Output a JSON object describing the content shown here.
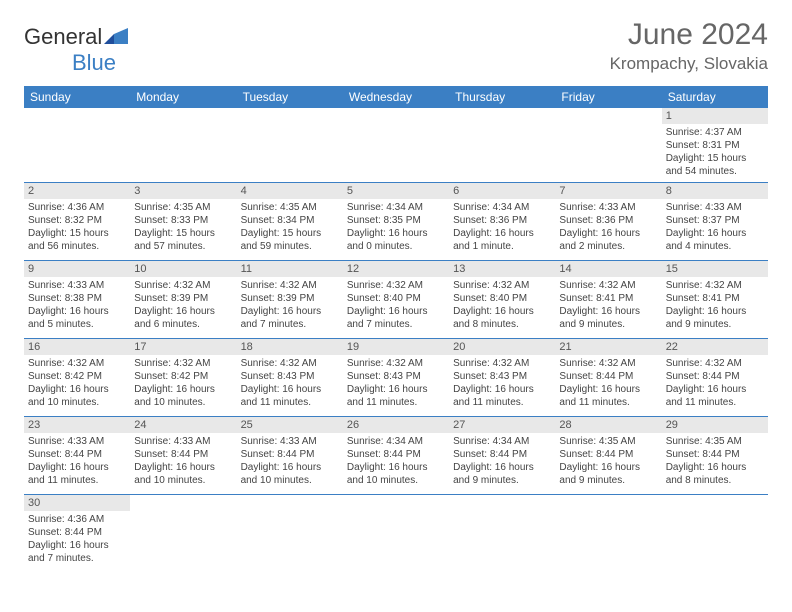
{
  "logo": {
    "word1": "General",
    "word2": "Blue"
  },
  "title": "June 2024",
  "location": "Krompachy, Slovakia",
  "colors": {
    "header_bg": "#3b7fc4",
    "header_text": "#ffffff",
    "daynum_bg": "#e8e8e8",
    "row_border": "#3b7fc4",
    "title_color": "#666666",
    "body_text": "#444444"
  },
  "weekdays": [
    "Sunday",
    "Monday",
    "Tuesday",
    "Wednesday",
    "Thursday",
    "Friday",
    "Saturday"
  ],
  "weeks": [
    [
      null,
      null,
      null,
      null,
      null,
      null,
      {
        "n": "1",
        "sr": "Sunrise: 4:37 AM",
        "ss": "Sunset: 8:31 PM",
        "dl": "Daylight: 15 hours and 54 minutes."
      }
    ],
    [
      {
        "n": "2",
        "sr": "Sunrise: 4:36 AM",
        "ss": "Sunset: 8:32 PM",
        "dl": "Daylight: 15 hours and 56 minutes."
      },
      {
        "n": "3",
        "sr": "Sunrise: 4:35 AM",
        "ss": "Sunset: 8:33 PM",
        "dl": "Daylight: 15 hours and 57 minutes."
      },
      {
        "n": "4",
        "sr": "Sunrise: 4:35 AM",
        "ss": "Sunset: 8:34 PM",
        "dl": "Daylight: 15 hours and 59 minutes."
      },
      {
        "n": "5",
        "sr": "Sunrise: 4:34 AM",
        "ss": "Sunset: 8:35 PM",
        "dl": "Daylight: 16 hours and 0 minutes."
      },
      {
        "n": "6",
        "sr": "Sunrise: 4:34 AM",
        "ss": "Sunset: 8:36 PM",
        "dl": "Daylight: 16 hours and 1 minute."
      },
      {
        "n": "7",
        "sr": "Sunrise: 4:33 AM",
        "ss": "Sunset: 8:36 PM",
        "dl": "Daylight: 16 hours and 2 minutes."
      },
      {
        "n": "8",
        "sr": "Sunrise: 4:33 AM",
        "ss": "Sunset: 8:37 PM",
        "dl": "Daylight: 16 hours and 4 minutes."
      }
    ],
    [
      {
        "n": "9",
        "sr": "Sunrise: 4:33 AM",
        "ss": "Sunset: 8:38 PM",
        "dl": "Daylight: 16 hours and 5 minutes."
      },
      {
        "n": "10",
        "sr": "Sunrise: 4:32 AM",
        "ss": "Sunset: 8:39 PM",
        "dl": "Daylight: 16 hours and 6 minutes."
      },
      {
        "n": "11",
        "sr": "Sunrise: 4:32 AM",
        "ss": "Sunset: 8:39 PM",
        "dl": "Daylight: 16 hours and 7 minutes."
      },
      {
        "n": "12",
        "sr": "Sunrise: 4:32 AM",
        "ss": "Sunset: 8:40 PM",
        "dl": "Daylight: 16 hours and 7 minutes."
      },
      {
        "n": "13",
        "sr": "Sunrise: 4:32 AM",
        "ss": "Sunset: 8:40 PM",
        "dl": "Daylight: 16 hours and 8 minutes."
      },
      {
        "n": "14",
        "sr": "Sunrise: 4:32 AM",
        "ss": "Sunset: 8:41 PM",
        "dl": "Daylight: 16 hours and 9 minutes."
      },
      {
        "n": "15",
        "sr": "Sunrise: 4:32 AM",
        "ss": "Sunset: 8:41 PM",
        "dl": "Daylight: 16 hours and 9 minutes."
      }
    ],
    [
      {
        "n": "16",
        "sr": "Sunrise: 4:32 AM",
        "ss": "Sunset: 8:42 PM",
        "dl": "Daylight: 16 hours and 10 minutes."
      },
      {
        "n": "17",
        "sr": "Sunrise: 4:32 AM",
        "ss": "Sunset: 8:42 PM",
        "dl": "Daylight: 16 hours and 10 minutes."
      },
      {
        "n": "18",
        "sr": "Sunrise: 4:32 AM",
        "ss": "Sunset: 8:43 PM",
        "dl": "Daylight: 16 hours and 11 minutes."
      },
      {
        "n": "19",
        "sr": "Sunrise: 4:32 AM",
        "ss": "Sunset: 8:43 PM",
        "dl": "Daylight: 16 hours and 11 minutes."
      },
      {
        "n": "20",
        "sr": "Sunrise: 4:32 AM",
        "ss": "Sunset: 8:43 PM",
        "dl": "Daylight: 16 hours and 11 minutes."
      },
      {
        "n": "21",
        "sr": "Sunrise: 4:32 AM",
        "ss": "Sunset: 8:44 PM",
        "dl": "Daylight: 16 hours and 11 minutes."
      },
      {
        "n": "22",
        "sr": "Sunrise: 4:32 AM",
        "ss": "Sunset: 8:44 PM",
        "dl": "Daylight: 16 hours and 11 minutes."
      }
    ],
    [
      {
        "n": "23",
        "sr": "Sunrise: 4:33 AM",
        "ss": "Sunset: 8:44 PM",
        "dl": "Daylight: 16 hours and 11 minutes."
      },
      {
        "n": "24",
        "sr": "Sunrise: 4:33 AM",
        "ss": "Sunset: 8:44 PM",
        "dl": "Daylight: 16 hours and 10 minutes."
      },
      {
        "n": "25",
        "sr": "Sunrise: 4:33 AM",
        "ss": "Sunset: 8:44 PM",
        "dl": "Daylight: 16 hours and 10 minutes."
      },
      {
        "n": "26",
        "sr": "Sunrise: 4:34 AM",
        "ss": "Sunset: 8:44 PM",
        "dl": "Daylight: 16 hours and 10 minutes."
      },
      {
        "n": "27",
        "sr": "Sunrise: 4:34 AM",
        "ss": "Sunset: 8:44 PM",
        "dl": "Daylight: 16 hours and 9 minutes."
      },
      {
        "n": "28",
        "sr": "Sunrise: 4:35 AM",
        "ss": "Sunset: 8:44 PM",
        "dl": "Daylight: 16 hours and 9 minutes."
      },
      {
        "n": "29",
        "sr": "Sunrise: 4:35 AM",
        "ss": "Sunset: 8:44 PM",
        "dl": "Daylight: 16 hours and 8 minutes."
      }
    ],
    [
      {
        "n": "30",
        "sr": "Sunrise: 4:36 AM",
        "ss": "Sunset: 8:44 PM",
        "dl": "Daylight: 16 hours and 7 minutes."
      },
      null,
      null,
      null,
      null,
      null,
      null
    ]
  ]
}
